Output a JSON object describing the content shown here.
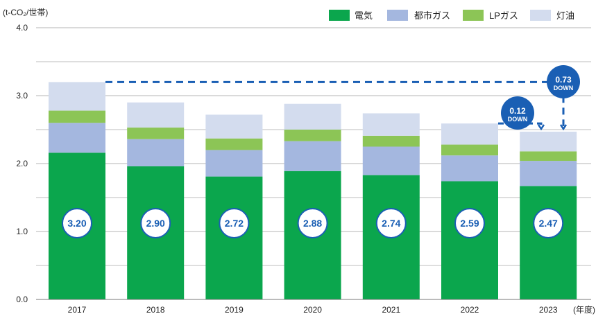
{
  "chart_data": {
    "type": "bar",
    "stacked": true,
    "title": "",
    "unit_label": "(t-CO₂/世帯)",
    "xlabel_suffix": "(年度)",
    "ylabel": "",
    "ylim": [
      0,
      4.0
    ],
    "yticks": [
      "0.0",
      "1.0",
      "2.0",
      "3.0",
      "4.0"
    ],
    "yticks_values": [
      0,
      1,
      2,
      3,
      4
    ],
    "minor_gridlines": [
      0.5,
      1.5,
      2.5,
      3.5
    ],
    "grid": true,
    "legend_position": "top-right",
    "categories": [
      "2017",
      "2018",
      "2019",
      "2020",
      "2021",
      "2022",
      "2023"
    ],
    "series": [
      {
        "name": "電気",
        "color": "#0ba64d",
        "values": [
          2.16,
          1.96,
          1.81,
          1.89,
          1.83,
          1.74,
          1.67
        ]
      },
      {
        "name": "都市ガス",
        "color": "#a4b7df",
        "values": [
          0.44,
          0.4,
          0.39,
          0.44,
          0.42,
          0.38,
          0.37
        ]
      },
      {
        "name": "LPガス",
        "color": "#8cc556",
        "values": [
          0.18,
          0.17,
          0.17,
          0.17,
          0.16,
          0.16,
          0.14
        ]
      },
      {
        "name": "灯油",
        "color": "#d3dcee",
        "values": [
          0.42,
          0.37,
          0.35,
          0.38,
          0.33,
          0.31,
          0.29
        ]
      }
    ],
    "totals": [
      "3.20",
      "2.90",
      "2.72",
      "2.88",
      "2.74",
      "2.59",
      "2.47"
    ],
    "totals_values": [
      3.2,
      2.9,
      2.72,
      2.88,
      2.74,
      2.59,
      2.47
    ],
    "annotations": [
      {
        "value": "0.73",
        "word": "DOWN",
        "from": "2017",
        "to": "2023"
      },
      {
        "value": "0.12",
        "word": "DOWN",
        "from": "2022",
        "to": "2023"
      }
    ],
    "accent_color": "#1a5fb4"
  }
}
